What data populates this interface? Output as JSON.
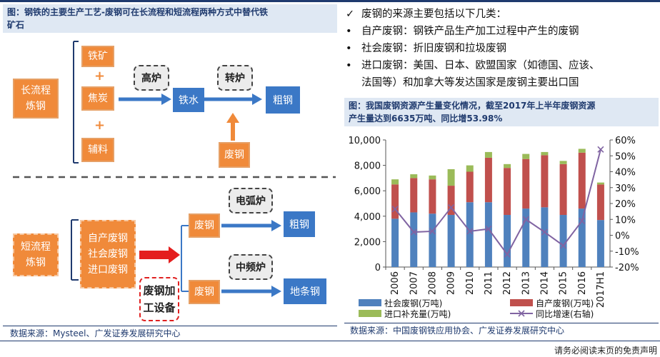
{
  "left": {
    "title_line1": "图：钢铁的主要生产工艺-废钢可在长流程和短流程两种方式中替代铁",
    "title_line2": "矿石",
    "long_process": "长流程\n炼钢",
    "short_process": "短流程\n炼钢",
    "iron_ore": "铁矿",
    "coke": "焦炭",
    "auxiliary": "辅料",
    "blast_furnace": "高炉",
    "molten_iron": "铁水",
    "converter": "转炉",
    "scrap_converter": "废钢",
    "crude_steel_long": "粗钢",
    "sources": "自产废钢\n社会废钢\n进口废钢",
    "scrap_upper": "废钢",
    "scrap_lower": "废钢",
    "eaf": "电弧炉",
    "induction": "中频炉",
    "crude_steel_short": "粗钢",
    "rebar": "地条钢",
    "scrap_equipment": "废钢加\n工设备",
    "plus_symbol": "+",
    "footer": "数据来源：Mysteel、广发证券发展研究中心"
  },
  "right": {
    "check": "✓",
    "heading": "废钢的来源主要包括以下几类：",
    "bullet": "•",
    "items": [
      "自产废钢：钢铁产品生产加工过程中产生的废钢",
      "社会废钢：折旧废钢和拉圾废钢",
      "进口废钢：美国、日本、欧盟国家（如德国、应该、",
      "法国等）和加拿大等发达国家是废钢主要出口国"
    ],
    "chart_title_line1": "图：我国废钢资源产生量变化情况，截至2017年上半年废钢资源",
    "chart_title_line2": "产生量达到6635万吨、同比增53.98%",
    "footer": "数据来源：中国废钢铁应用协会、广发证券发展研究中心"
  },
  "page_footer": "请务必阅读末页的免责声明",
  "colors": {
    "navy": "#1f3a6e",
    "orange": "#f08a3a",
    "blue": "#3b78c6",
    "social": "#4f81bd",
    "self": "#c0504d",
    "import": "#9bbb59",
    "growth": "#8064a2"
  },
  "chart_data": {
    "type": "bar",
    "stacked": true,
    "categories": [
      "2006",
      "2007",
      "2008",
      "2009",
      "2010",
      "2011",
      "2012",
      "2013",
      "2014",
      "2015",
      "2016",
      "2017H1"
    ],
    "series": [
      {
        "name": "社会废钢(万吨)",
        "axis": "left",
        "values": [
          3800,
          4300,
          4200,
          4100,
          5100,
          5100,
          4100,
          4600,
          4700,
          4100,
          4600,
          3700
        ]
      },
      {
        "name": "自产废钢(万吨)",
        "axis": "left",
        "values": [
          2700,
          2700,
          2700,
          2300,
          2400,
          3500,
          3700,
          3900,
          4100,
          4000,
          4400,
          2800
        ]
      },
      {
        "name": "进口补充量(万吨)",
        "axis": "left",
        "values": [
          400,
          300,
          300,
          1300,
          500,
          450,
          300,
          400,
          250,
          250,
          300,
          150
        ]
      },
      {
        "name": "同比增速(右轴)",
        "axis": "right",
        "type": "line",
        "values": [
          0.165,
          0.02,
          0.025,
          0.175,
          0.025,
          0.04,
          -0.12,
          0.1,
          0.02,
          -0.065,
          0.09,
          0.54
        ]
      }
    ],
    "y_left": {
      "min": 0,
      "max": 10000,
      "ticks": [
        "0",
        "2,000",
        "4,000",
        "6,000",
        "8,000",
        "10,000"
      ]
    },
    "y_right": {
      "min": -0.2,
      "max": 0.6,
      "ticks": [
        "-20%",
        "-10%",
        "0%",
        "10%",
        "20%",
        "30%",
        "40%",
        "50%",
        "60%"
      ]
    },
    "legend_position": "bottom"
  }
}
